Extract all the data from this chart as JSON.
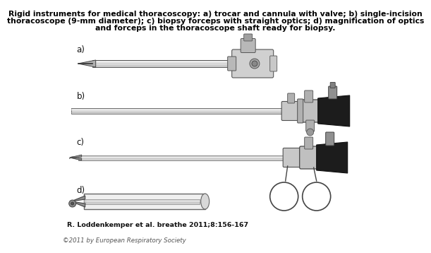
{
  "title_line1": "Rigid instruments for medical thoracoscopy: a) trocar and cannula with valve; b) single-incision",
  "title_line2": "thoracoscope (9-mm diameter); c) biopsy forceps with straight optics; d) magnification of optics",
  "title_line3": "and forceps in the thoracoscope shaft ready for biopsy.",
  "label_a": "a)",
  "label_b": "b)",
  "label_c": "c)",
  "label_d": "d)",
  "citation": "R. Loddenkemper et al. breathe 2011;8:156-167",
  "copyright": "©2011 by European Respiratory Society",
  "bg_color": "#ffffff",
  "title_fontsize": 7.8,
  "label_fontsize": 8.5,
  "citation_fontsize": 6.8,
  "copyright_fontsize": 6.2,
  "gray_shaft": "#c8c8c8",
  "dark_gray": "#606060",
  "light_gray": "#e0e0e0",
  "black": "#111111",
  "mid_gray": "#989898"
}
